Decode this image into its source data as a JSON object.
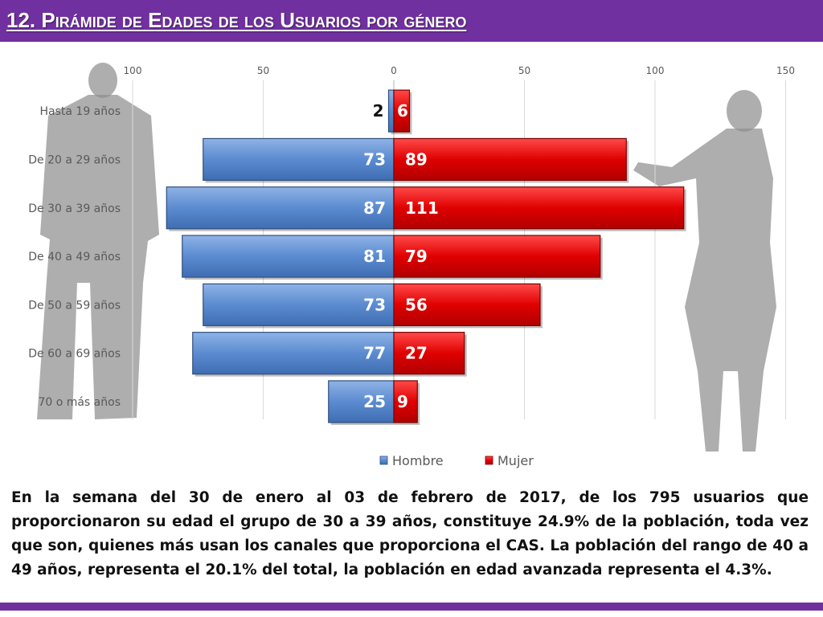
{
  "header": {
    "title": "12. Pirámide de Edades de los Usuarios por género"
  },
  "colors": {
    "accent": "#7030A0",
    "hombre": "#5B8BD0",
    "mujer": "#E00000"
  },
  "chart_data": {
    "type": "bar",
    "orientation": "horizontal",
    "layout": "population-pyramid",
    "categories": [
      "Hasta 19 años",
      "De 20 a 29 años",
      "De 30 a 39 años",
      "De 40 a 49 años",
      "De 50 a 59 años",
      "De 60 a 69 años",
      "70 o más años"
    ],
    "series": [
      {
        "name": "Hombre",
        "values": [
          2,
          73,
          87,
          81,
          73,
          77,
          25
        ],
        "side": "left",
        "color": "#5B8BD0"
      },
      {
        "name": "Mujer",
        "values": [
          6,
          89,
          111,
          79,
          56,
          27,
          9
        ],
        "side": "right",
        "color": "#E00000"
      }
    ],
    "x_ticks": [
      "100",
      "50",
      "0",
      "50",
      "100",
      "150"
    ],
    "xlim": [
      -100,
      150
    ],
    "grid": "vertical",
    "legend": "bottom"
  },
  "footer": {
    "text": "En la semana del 30 de enero al 03 de febrero de 2017, de los 795 usuarios  que proporcionaron su edad el grupo de 30 a 39 años,  constituye 24.9% de la población, toda vez que son, quienes más usan los canales que proporciona el CAS. La población del rango de 40 a 49 años, representa el 20.1% del total, la población en edad avanzada representa el 4.3%."
  }
}
